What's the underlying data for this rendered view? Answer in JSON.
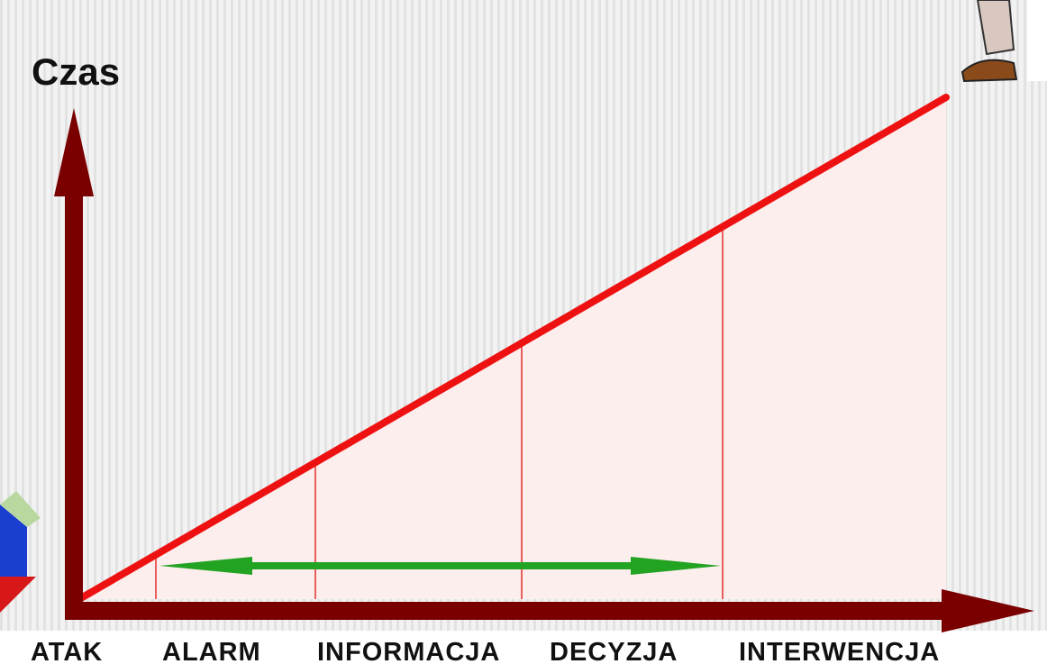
{
  "title": "Czas",
  "stages": [
    "ATAK",
    "ALARM",
    "INFORMACJA",
    "DECYZJA",
    "INTERWENCJA"
  ]
}
